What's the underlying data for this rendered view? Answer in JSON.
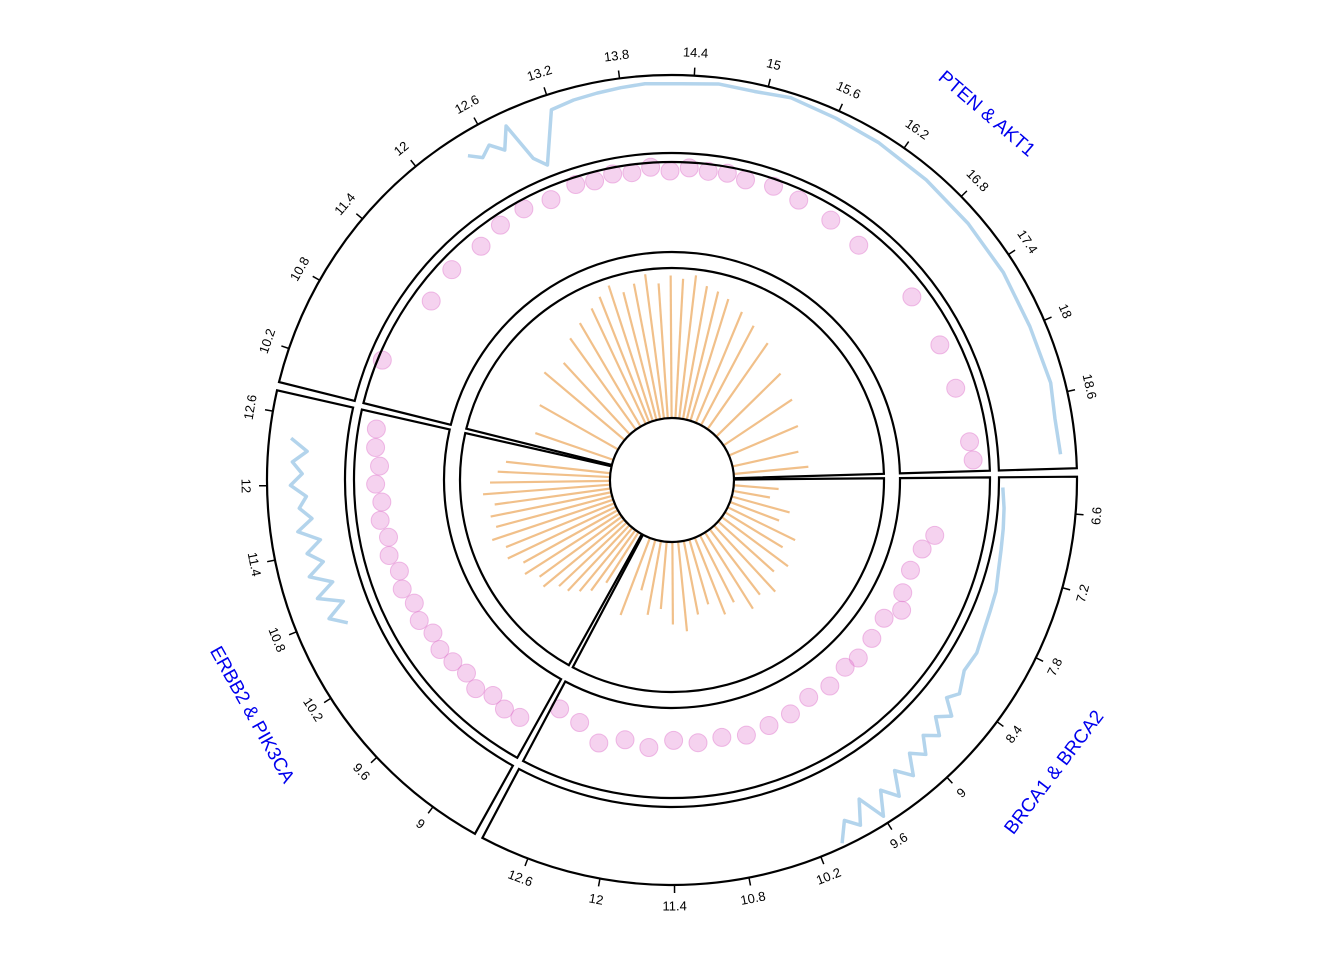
{
  "chart_data": {
    "type": "circos",
    "tracks": {
      "line": {
        "color": "#b3d4ec",
        "ylim": [
          0,
          1
        ]
      },
      "points": {
        "color": "#e27fd0",
        "ylim": [
          0,
          1
        ]
      },
      "bars": {
        "color": "#e8963c",
        "ylim": [
          0,
          1
        ]
      }
    },
    "label_color": "#0000ee",
    "sectors": [
      {
        "name": "PTEN & AKT1",
        "xlim": [
          9.92,
          19.22
        ],
        "xticks": [
          10.2,
          10.8,
          11.4,
          12,
          12.6,
          13.2,
          13.8,
          14.4,
          15,
          15.6,
          16.2,
          16.8,
          17.4,
          18,
          18.6
        ],
        "line": {
          "x": [
            12.4,
            12.5,
            12.6,
            12.7,
            12.8,
            12.9,
            13.0,
            13.2,
            13.4,
            13.6,
            13.8,
            14.0,
            14.3,
            14.6,
            14.9,
            15.2,
            15.6,
            16.0,
            16.5,
            17.0,
            17.5,
            18.0,
            18.5,
            18.8,
            19.1
          ],
          "values": [
            0.72,
            0.6,
            0.7,
            0.55,
            0.82,
            0.3,
            0.15,
            0.8,
            0.84,
            0.86,
            0.88,
            0.9,
            0.89,
            0.92,
            0.9,
            0.94,
            0.9,
            0.88,
            0.85,
            0.83,
            0.82,
            0.8,
            0.82,
            0.78,
            0.8
          ]
        },
        "points": {
          "x": [
            10.4,
            11.2,
            11.6,
            12.0,
            12.3,
            12.6,
            12.9,
            13.2,
            13.4,
            13.6,
            13.8,
            14.0,
            14.2,
            14.4,
            14.6,
            14.8,
            15.0,
            15.3,
            15.6,
            16.0,
            16.4,
            17.2,
            17.8,
            18.3,
            18.9,
            19.1
          ],
          "values": [
            0.95,
            0.8,
            0.85,
            0.82,
            0.88,
            0.9,
            0.86,
            0.92,
            0.9,
            0.93,
            0.91,
            0.95,
            0.9,
            0.94,
            0.92,
            0.93,
            0.9,
            0.92,
            0.88,
            0.85,
            0.8,
            0.82,
            0.8,
            0.78,
            0.8,
            0.82
          ]
        },
        "bars": {
          "x": [
            10.2,
            10.8,
            11.4,
            11.8,
            12.2,
            12.5,
            12.8,
            13.0,
            13.2,
            13.4,
            13.6,
            13.8,
            14.0,
            14.2,
            14.4,
            14.6,
            14.8,
            15.0,
            15.2,
            15.5,
            15.8,
            16.2,
            16.8,
            17.4,
            18.0,
            18.6,
            19.0
          ],
          "values": [
            0.55,
            0.6,
            0.7,
            0.65,
            0.75,
            0.8,
            0.85,
            0.9,
            0.95,
            0.88,
            0.92,
            0.97,
            0.9,
            0.95,
            0.93,
            0.96,
            0.9,
            0.88,
            0.85,
            0.8,
            0.75,
            0.7,
            0.6,
            0.55,
            0.5,
            0.45,
            0.5
          ]
        }
      },
      {
        "name": "BRCA1 & BRCA2",
        "xlim": [
          6.3,
          13.0
        ],
        "xticks": [
          6.6,
          7.2,
          7.8,
          8.4,
          9,
          9.6,
          10.2,
          10.8,
          11.4,
          12,
          12.6
        ],
        "line": {
          "x": [
            6.4,
            6.6,
            6.8,
            7.0,
            7.2,
            7.4,
            7.6,
            7.8,
            8.0,
            8.2,
            8.4,
            8.5,
            8.6,
            8.7,
            8.8,
            8.9,
            9.0,
            9.1,
            9.2,
            9.3,
            9.4,
            9.5,
            9.6,
            9.7,
            9.8,
            9.9,
            10.0
          ],
          "values": [
            0.05,
            0.08,
            0.1,
            0.12,
            0.15,
            0.2,
            0.22,
            0.25,
            0.3,
            0.28,
            0.4,
            0.3,
            0.5,
            0.35,
            0.55,
            0.4,
            0.6,
            0.45,
            0.7,
            0.5,
            0.8,
            0.6,
            0.9,
            0.55,
            0.85,
            0.7,
            0.95
          ]
        },
        "points": {
          "x": [
            7.0,
            7.2,
            7.5,
            7.8,
            8.0,
            8.2,
            8.5,
            8.8,
            9.0,
            9.3,
            9.6,
            9.9,
            10.2,
            10.5,
            10.8,
            11.1,
            11.4,
            11.7,
            12.0,
            12.3,
            12.6,
            12.9
          ],
          "values": [
            0.45,
            0.35,
            0.3,
            0.32,
            0.4,
            0.28,
            0.3,
            0.33,
            0.3,
            0.35,
            0.32,
            0.38,
            0.4,
            0.42,
            0.38,
            0.4,
            0.36,
            0.45,
            0.4,
            0.5,
            0.35,
            0.3
          ]
        },
        "bars": {
          "x": [
            6.6,
            6.9,
            7.2,
            7.5,
            7.8,
            8.1,
            8.4,
            8.7,
            9.0,
            9.3,
            9.6,
            9.9,
            10.2,
            10.5,
            10.8,
            11.1,
            11.4,
            11.7,
            12.0,
            12.3,
            12.6
          ],
          "values": [
            0.3,
            0.25,
            0.4,
            0.35,
            0.5,
            0.45,
            0.55,
            0.5,
            0.6,
            0.55,
            0.6,
            0.5,
            0.55,
            0.45,
            0.5,
            0.6,
            0.55,
            0.45,
            0.5,
            0.35,
            0.55
          ]
        }
      },
      {
        "name": "ERBB2 & PIK3CA",
        "xlim": [
          8.6,
          12.77
        ],
        "xticks": [
          9,
          9.6,
          10.2,
          10.8,
          11.4,
          12,
          12.6
        ],
        "line": {
          "x": [
            10.7,
            10.8,
            10.9,
            11.0,
            11.1,
            11.2,
            11.3,
            11.4,
            11.5,
            11.6,
            11.7,
            11.8,
            11.9,
            12.0,
            12.1,
            12.2,
            12.3,
            12.4
          ],
          "values": [
            0.35,
            0.55,
            0.3,
            0.6,
            0.35,
            0.62,
            0.4,
            0.58,
            0.38,
            0.65,
            0.45,
            0.6,
            0.5,
            0.7,
            0.55,
            0.68,
            0.5,
            0.72
          ]
        },
        "points": {
          "x": [
            8.8,
            9.0,
            9.2,
            9.4,
            9.6,
            9.8,
            10.0,
            10.2,
            10.4,
            10.6,
            10.8,
            11.0,
            11.2,
            11.4,
            11.6,
            11.8,
            12.0,
            12.2,
            12.4,
            12.6
          ],
          "values": [
            0.6,
            0.62,
            0.58,
            0.65,
            0.6,
            0.63,
            0.66,
            0.62,
            0.68,
            0.64,
            0.7,
            0.66,
            0.72,
            0.68,
            0.74,
            0.7,
            0.76,
            0.72,
            0.78,
            0.8
          ]
        },
        "bars": {
          "x": [
            8.8,
            9.0,
            9.2,
            9.4,
            9.6,
            9.8,
            10.0,
            10.2,
            10.4,
            10.6,
            10.8,
            11.0,
            11.2,
            11.4,
            11.6,
            11.8,
            12.0,
            12.2,
            12.4
          ],
          "values": [
            0.4,
            0.5,
            0.55,
            0.6,
            0.62,
            0.7,
            0.68,
            0.75,
            0.72,
            0.8,
            0.78,
            0.85,
            0.8,
            0.82,
            0.78,
            0.85,
            0.8,
            0.75,
            0.7
          ]
        }
      }
    ]
  }
}
